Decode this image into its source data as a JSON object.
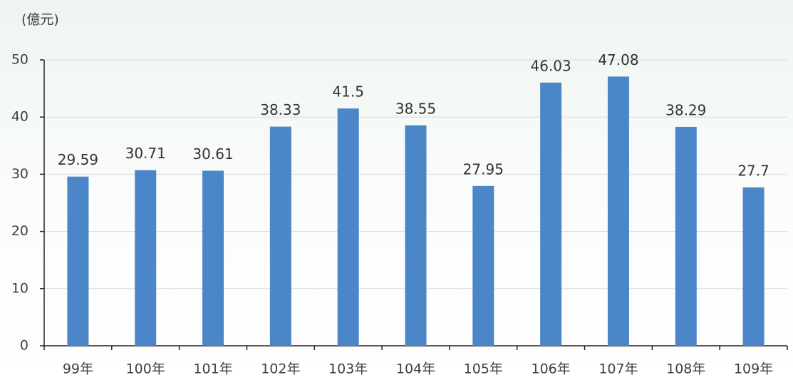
{
  "chart_data": {
    "type": "bar",
    "y_label": "(億元)",
    "categories": [
      "99年",
      "100年",
      "101年",
      "102年",
      "103年",
      "104年",
      "105年",
      "106年",
      "107年",
      "108年",
      "109年"
    ],
    "values": [
      29.59,
      30.71,
      30.61,
      38.33,
      41.5,
      38.55,
      27.95,
      46.03,
      47.08,
      38.29,
      27.7
    ],
    "color": "#4a86c8",
    "ylim": [
      0,
      50
    ],
    "yticks": [
      0,
      10,
      20,
      30,
      40,
      50
    ],
    "grid": true
  }
}
